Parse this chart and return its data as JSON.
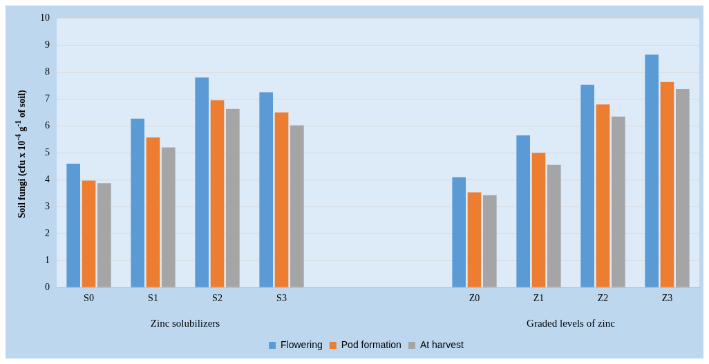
{
  "chart_data": {
    "type": "bar",
    "ylabel": "Soil fungi (cfu x 10$^{-4}$ g$^{-1}$ of soil)",
    "categories": [
      "S0",
      "S1",
      "S2",
      "S3",
      null,
      null,
      "Z0",
      "Z1",
      "Z2",
      "Z3"
    ],
    "series": [
      {
        "name": "Flowering",
        "color": "#5b9bd5",
        "values": [
          4.6,
          6.27,
          7.8,
          7.25,
          null,
          null,
          4.1,
          5.65,
          7.53,
          8.65
        ]
      },
      {
        "name": "Pod formation",
        "color": "#ed7d31",
        "values": [
          3.97,
          5.57,
          6.95,
          6.5,
          null,
          null,
          3.53,
          5.0,
          6.8,
          7.63
        ]
      },
      {
        "name": "At harvest",
        "color": "#a5a5a5",
        "values": [
          3.87,
          5.2,
          6.63,
          6.02,
          null,
          null,
          3.43,
          4.55,
          6.35,
          7.37
        ]
      }
    ],
    "ylim": [
      0,
      10
    ],
    "yticks": [
      0,
      1,
      2,
      3,
      4,
      5,
      6,
      7,
      8,
      9,
      10
    ],
    "grid": "y",
    "legend": "bottom",
    "annotations": [
      "Zinc solubilizers",
      "Graded levels of zinc"
    ]
  }
}
